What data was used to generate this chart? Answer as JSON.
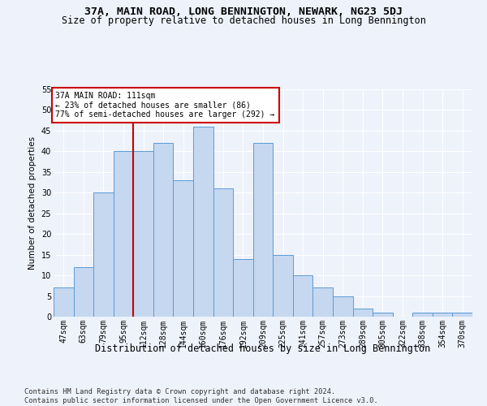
{
  "title1": "37A, MAIN ROAD, LONG BENNINGTON, NEWARK, NG23 5DJ",
  "title2": "Size of property relative to detached houses in Long Bennington",
  "xlabel": "Distribution of detached houses by size in Long Bennington",
  "ylabel": "Number of detached properties",
  "categories": [
    "47sqm",
    "63sqm",
    "79sqm",
    "95sqm",
    "112sqm",
    "128sqm",
    "144sqm",
    "160sqm",
    "176sqm",
    "192sqm",
    "209sqm",
    "225sqm",
    "241sqm",
    "257sqm",
    "273sqm",
    "289sqm",
    "305sqm",
    "322sqm",
    "338sqm",
    "354sqm",
    "370sqm"
  ],
  "values": [
    7,
    12,
    30,
    40,
    40,
    42,
    33,
    46,
    31,
    14,
    42,
    15,
    10,
    7,
    5,
    2,
    1,
    0,
    1,
    1,
    1
  ],
  "bar_color": "#c5d8f0",
  "bar_edge_color": "#5b9bd5",
  "vline_color": "#cc0000",
  "vline_x_index": 3.5,
  "annotation_text": "37A MAIN ROAD: 111sqm\n← 23% of detached houses are smaller (86)\n77% of semi-detached houses are larger (292) →",
  "annotation_box_color": "white",
  "annotation_box_edge": "#cc0000",
  "ylim": [
    0,
    55
  ],
  "yticks": [
    0,
    5,
    10,
    15,
    20,
    25,
    30,
    35,
    40,
    45,
    50,
    55
  ],
  "footnote": "Contains HM Land Registry data © Crown copyright and database right 2024.\nContains public sector information licensed under the Open Government Licence v3.0.",
  "background_color": "#eef2fb",
  "plot_bg_color": "#eef2fb",
  "grid_color": "#ffffff",
  "title1_fontsize": 9.5,
  "title2_fontsize": 8.5,
  "xlabel_fontsize": 8.5,
  "ylabel_fontsize": 7.5,
  "tick_fontsize": 7,
  "annotation_fontsize": 7,
  "footnote_fontsize": 6.2
}
